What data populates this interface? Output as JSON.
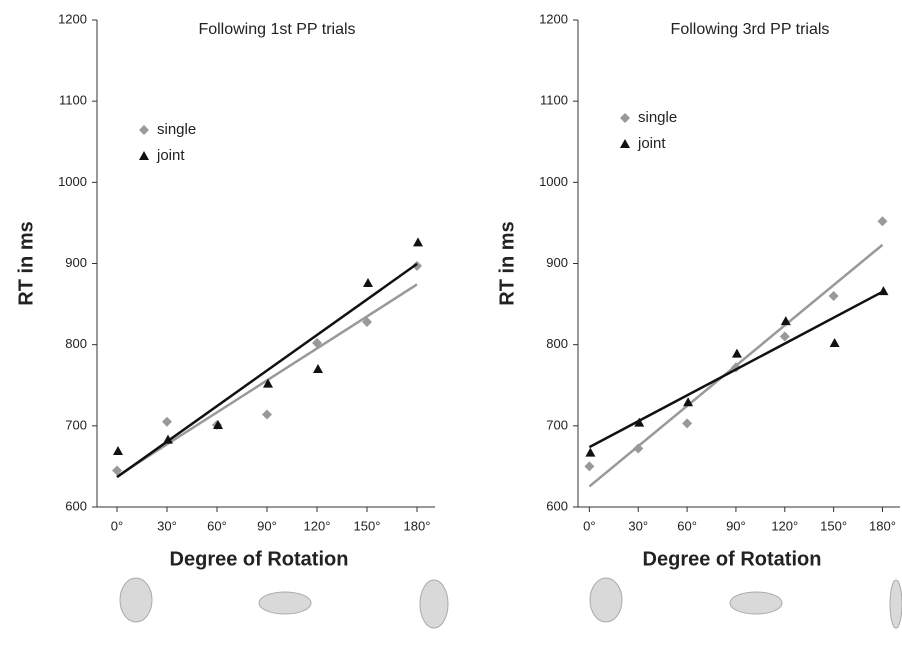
{
  "chart_data": [
    {
      "type": "scatter",
      "title": "Following 1st PP trials",
      "x_label": "Degree of Rotation",
      "y_label": "RT in ms",
      "x": [
        0,
        30,
        60,
        90,
        120,
        150,
        180
      ],
      "series": [
        {
          "name": "single",
          "color": "#999999",
          "marker": "diamond",
          "values": [
            645,
            705,
            701,
            714,
            802,
            828,
            897
          ]
        },
        {
          "name": "joint",
          "color": "#111111",
          "marker": "triangle",
          "values": [
            669,
            683,
            701,
            752,
            770,
            876,
            926
          ]
        }
      ],
      "xlim": [
        -12,
        192
      ],
      "ylim": [
        600,
        1200
      ],
      "xticks": [
        {
          "value": 0,
          "label": "0°"
        },
        {
          "value": 30,
          "label": "30°"
        },
        {
          "value": 60,
          "label": "60°"
        },
        {
          "value": 90,
          "label": "90°"
        },
        {
          "value": 120,
          "label": "120°"
        },
        {
          "value": 150,
          "label": "150°"
        },
        {
          "value": 180,
          "label": "180°"
        }
      ],
      "yticks": [
        600,
        700,
        800,
        900,
        1000,
        1100,
        1200
      ],
      "trendline": true
    },
    {
      "type": "scatter",
      "title": "Following 3rd PP trials",
      "x_label": "Degree of Rotation",
      "y_label": "RT in ms",
      "x": [
        0,
        30,
        60,
        90,
        120,
        150,
        180
      ],
      "series": [
        {
          "name": "single",
          "color": "#999999",
          "marker": "diamond",
          "values": [
            650,
            672,
            703,
            772,
            810,
            860,
            952
          ]
        },
        {
          "name": "joint",
          "color": "#111111",
          "marker": "triangle",
          "values": [
            667,
            704,
            729,
            789,
            829,
            802,
            866
          ]
        }
      ],
      "xlim": [
        -7,
        192
      ],
      "ylim": [
        600,
        1200
      ],
      "xticks": [
        {
          "value": 0,
          "label": "0°"
        },
        {
          "value": 30,
          "label": "30°"
        },
        {
          "value": 60,
          "label": "60°"
        },
        {
          "value": 90,
          "label": "90°"
        },
        {
          "value": 120,
          "label": "120°"
        },
        {
          "value": 150,
          "label": "150°"
        },
        {
          "value": 180,
          "label": "180°"
        }
      ],
      "yticks": [
        600,
        700,
        800,
        900,
        1000,
        1100,
        1200
      ],
      "trendline": true
    }
  ]
}
